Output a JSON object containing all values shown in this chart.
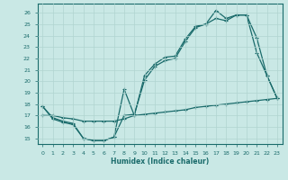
{
  "xlabel": "Humidex (Indice chaleur)",
  "xlim": [
    -0.5,
    23.5
  ],
  "ylim": [
    14.5,
    26.8
  ],
  "xticks": [
    0,
    1,
    2,
    3,
    4,
    5,
    6,
    7,
    8,
    9,
    10,
    11,
    12,
    13,
    14,
    15,
    16,
    17,
    18,
    19,
    20,
    21,
    22,
    23
  ],
  "yticks": [
    15,
    16,
    17,
    18,
    19,
    20,
    21,
    22,
    23,
    24,
    25,
    26
  ],
  "background_color": "#c9e8e5",
  "line_color": "#1a6b6b",
  "grid_color": "#b0d4d0",
  "line1_x": [
    0,
    1,
    2,
    3,
    4,
    5,
    6,
    7,
    8,
    9,
    10,
    11,
    12,
    13,
    14,
    15,
    16,
    17,
    18,
    19,
    20,
    21,
    22,
    23
  ],
  "line1_y": [
    17.8,
    16.8,
    16.5,
    16.3,
    15.0,
    14.8,
    14.8,
    15.1,
    19.3,
    17.0,
    20.5,
    21.5,
    22.1,
    22.2,
    23.7,
    24.8,
    25.0,
    26.2,
    25.5,
    25.8,
    25.8,
    23.8,
    20.5,
    18.5
  ],
  "line2_x": [
    0,
    1,
    2,
    3,
    4,
    5,
    6,
    7,
    8,
    9,
    10,
    11,
    12,
    13,
    14,
    15,
    16,
    17,
    18,
    19,
    20,
    21,
    22,
    23
  ],
  "line2_y": [
    17.8,
    16.7,
    16.4,
    16.2,
    15.0,
    14.8,
    14.8,
    15.1,
    17.0,
    17.1,
    20.1,
    21.3,
    21.8,
    22.0,
    23.5,
    24.7,
    25.0,
    25.5,
    25.3,
    25.8,
    25.8,
    22.5,
    20.5,
    18.5
  ],
  "line3_x": [
    0,
    1,
    2,
    3,
    4,
    5,
    6,
    7,
    8,
    9,
    10,
    11,
    12,
    13,
    14,
    15,
    16,
    17,
    18,
    19,
    20,
    21,
    22,
    23
  ],
  "line3_y": [
    17.0,
    17.0,
    16.8,
    16.7,
    16.5,
    16.5,
    16.5,
    16.5,
    16.7,
    17.0,
    17.1,
    17.2,
    17.3,
    17.4,
    17.5,
    17.7,
    17.8,
    17.9,
    18.0,
    18.1,
    18.2,
    18.3,
    18.4,
    18.5
  ]
}
